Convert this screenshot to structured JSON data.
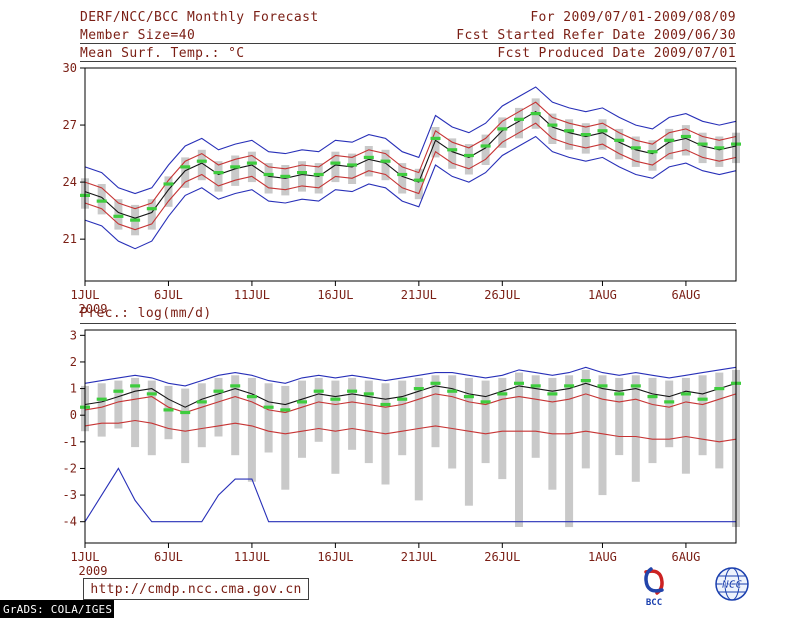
{
  "page": {
    "bg": "#ffffff",
    "text_color": "#7a1e14",
    "frame_color": "#000000"
  },
  "header": {
    "left": [
      "DERF/NCC/BCC Monthly Forecast",
      "Member Size=40",
      "Mean Surf. Temp.: °C"
    ],
    "right": [
      "For 2009/07/01-2009/08/09",
      "Fcst Started Refer Date 2009/06/30",
      "Fcst Produced Date 2009/07/01"
    ]
  },
  "footer": {
    "url": "http://cmdp.ncc.cma.gov.cn",
    "grads_credit": "GrADS: COLA/IGES",
    "logos": [
      {
        "name": "bcc-logo",
        "label": "BCC",
        "color": "#1a3fae",
        "accent": "#cc2222"
      },
      {
        "name": "ncc-logo",
        "label": "NCC",
        "color": "#1a3fae"
      }
    ]
  },
  "chart_data": [
    {
      "name": "surface-temperature-chart",
      "type": "line",
      "title": "Mean Surf. Temp.: °C",
      "xlabel": "",
      "ylabel": "",
      "ylim": [
        18.8,
        30
      ],
      "yticks": [
        21,
        24,
        27,
        30
      ],
      "n_days": 40,
      "x_ticks": [
        {
          "i": 0,
          "label": "1JUL",
          "sub": "2009"
        },
        {
          "i": 5,
          "label": "6JUL"
        },
        {
          "i": 10,
          "label": "11JUL"
        },
        {
          "i": 15,
          "label": "16JUL"
        },
        {
          "i": 20,
          "label": "21JUL"
        },
        {
          "i": 25,
          "label": "26JUL"
        },
        {
          "i": 31,
          "label": "1AUG"
        },
        {
          "i": 36,
          "label": "6AUG"
        }
      ],
      "series": [
        {
          "name": "ensemble-spread-bar",
          "role": "bar",
          "color": "#c9c9c9",
          "top": [
            24.2,
            23.9,
            23.1,
            22.8,
            23.1,
            24.3,
            25.3,
            25.7,
            25.1,
            25.4,
            25.6,
            25.0,
            24.9,
            25.1,
            25.0,
            25.6,
            25.5,
            25.9,
            25.7,
            25.0,
            24.7,
            26.9,
            26.3,
            26.0,
            26.5,
            27.4,
            27.9,
            28.4,
            27.6,
            27.3,
            27.1,
            27.3,
            26.8,
            26.4,
            26.2,
            26.8,
            27.0,
            26.6,
            26.4,
            26.6
          ],
          "bottom": [
            22.6,
            22.3,
            21.5,
            21.2,
            21.5,
            22.7,
            23.7,
            24.1,
            23.5,
            23.8,
            24.0,
            23.4,
            23.3,
            23.5,
            23.4,
            24.0,
            23.9,
            24.3,
            24.1,
            23.4,
            23.1,
            25.3,
            24.7,
            24.4,
            24.9,
            25.8,
            26.3,
            26.8,
            26.0,
            25.7,
            25.5,
            25.7,
            25.2,
            24.8,
            24.6,
            25.2,
            25.4,
            25.0,
            24.8,
            25.0
          ]
        },
        {
          "name": "ensemble-max",
          "role": "line",
          "color": "#2830b8",
          "values": [
            24.8,
            24.5,
            23.7,
            23.4,
            23.7,
            24.9,
            25.9,
            26.3,
            25.7,
            26.0,
            26.2,
            25.6,
            25.5,
            25.7,
            25.6,
            26.2,
            26.1,
            26.5,
            26.3,
            25.6,
            25.3,
            27.5,
            26.9,
            26.6,
            27.1,
            28.0,
            28.5,
            29.0,
            28.2,
            27.9,
            27.7,
            27.9,
            27.4,
            27.0,
            26.8,
            27.4,
            27.6,
            27.2,
            27.0,
            27.2
          ]
        },
        {
          "name": "upper-red",
          "role": "line",
          "color": "#c63434",
          "values": [
            24.0,
            23.7,
            22.9,
            22.6,
            22.9,
            24.1,
            25.1,
            25.5,
            24.9,
            25.2,
            25.4,
            24.8,
            24.7,
            24.9,
            24.8,
            25.4,
            25.3,
            25.7,
            25.5,
            24.8,
            24.5,
            26.7,
            26.1,
            25.8,
            26.3,
            27.2,
            27.7,
            28.2,
            27.4,
            27.1,
            26.9,
            27.1,
            26.6,
            26.2,
            26.0,
            26.6,
            26.8,
            26.4,
            26.2,
            26.4
          ]
        },
        {
          "name": "ensemble-mean",
          "role": "line",
          "color": "#141414",
          "values": [
            23.5,
            23.2,
            22.4,
            22.1,
            22.4,
            23.6,
            24.6,
            25.0,
            24.4,
            24.7,
            24.9,
            24.3,
            24.2,
            24.4,
            24.3,
            24.9,
            24.8,
            25.2,
            25.0,
            24.3,
            24.0,
            26.2,
            25.6,
            25.3,
            25.8,
            26.7,
            27.2,
            27.7,
            26.9,
            26.6,
            26.4,
            26.6,
            26.1,
            25.7,
            25.5,
            26.1,
            26.3,
            25.9,
            25.7,
            25.9
          ]
        },
        {
          "name": "lower-red",
          "role": "line",
          "color": "#c63434",
          "values": [
            22.9,
            22.6,
            21.8,
            21.5,
            21.8,
            23.0,
            24.0,
            24.4,
            23.8,
            24.1,
            24.3,
            23.7,
            23.6,
            23.8,
            23.7,
            24.3,
            24.2,
            24.6,
            24.4,
            23.7,
            23.4,
            25.6,
            25.0,
            24.7,
            25.2,
            26.1,
            26.6,
            27.1,
            26.3,
            26.0,
            25.8,
            26.0,
            25.5,
            25.1,
            24.9,
            25.5,
            25.7,
            25.3,
            25.1,
            25.3
          ]
        },
        {
          "name": "ensemble-min",
          "role": "line",
          "color": "#2830b8",
          "values": [
            22.0,
            21.7,
            20.9,
            20.5,
            20.9,
            22.2,
            23.3,
            23.7,
            23.1,
            23.4,
            23.6,
            23.0,
            22.9,
            23.1,
            23.0,
            23.6,
            23.5,
            23.9,
            23.7,
            23.0,
            22.7,
            24.9,
            24.3,
            24.0,
            24.5,
            25.4,
            25.9,
            26.4,
            25.6,
            25.3,
            25.1,
            25.3,
            24.8,
            24.4,
            24.2,
            24.8,
            25.0,
            24.6,
            24.4,
            24.6
          ]
        },
        {
          "name": "obs-green-dashes",
          "role": "dashes",
          "color": "#3ecc3e",
          "values": [
            23.3,
            23.0,
            22.2,
            22.0,
            22.6,
            23.9,
            24.8,
            25.1,
            24.5,
            24.8,
            25.0,
            24.4,
            24.3,
            24.5,
            24.4,
            25.0,
            24.9,
            25.3,
            25.1,
            24.4,
            24.1,
            26.3,
            25.7,
            25.4,
            25.9,
            26.8,
            27.3,
            27.6,
            27.0,
            26.7,
            26.5,
            26.7,
            26.2,
            25.8,
            25.6,
            26.2,
            26.4,
            26.0,
            25.8,
            26.0
          ]
        }
      ]
    },
    {
      "name": "precipitation-chart",
      "type": "line",
      "title": "Prec.: log(mm/d)",
      "xlabel": "",
      "ylabel": "",
      "ylim": [
        -4.8,
        3.2
      ],
      "yticks": [
        -4,
        -3,
        -2,
        -1,
        0,
        1,
        2,
        3
      ],
      "n_days": 40,
      "x_ticks": [
        {
          "i": 0,
          "label": "1JUL",
          "sub": "2009"
        },
        {
          "i": 5,
          "label": "6JUL"
        },
        {
          "i": 10,
          "label": "11JUL"
        },
        {
          "i": 15,
          "label": "16JUL"
        },
        {
          "i": 20,
          "label": "21JUL"
        },
        {
          "i": 25,
          "label": "26JUL"
        },
        {
          "i": 31,
          "label": "1AUG"
        },
        {
          "i": 36,
          "label": "6AUG"
        }
      ],
      "series": [
        {
          "name": "ensemble-spread-bar",
          "role": "bar",
          "color": "#c9c9c9",
          "top": [
            1.1,
            1.2,
            1.3,
            1.4,
            1.3,
            1.1,
            1.0,
            1.2,
            1.4,
            1.5,
            1.4,
            1.2,
            1.1,
            1.3,
            1.4,
            1.3,
            1.4,
            1.3,
            1.2,
            1.3,
            1.4,
            1.5,
            1.5,
            1.4,
            1.3,
            1.4,
            1.6,
            1.5,
            1.4,
            1.5,
            1.7,
            1.5,
            1.4,
            1.5,
            1.4,
            1.3,
            1.4,
            1.5,
            1.6,
            1.7
          ],
          "bottom": [
            -0.6,
            -0.8,
            -0.5,
            -1.2,
            -1.5,
            -0.9,
            -1.8,
            -1.2,
            -0.8,
            -1.5,
            -2.5,
            -1.4,
            -2.8,
            -1.6,
            -1.0,
            -2.2,
            -1.3,
            -1.8,
            -2.6,
            -1.5,
            -3.2,
            -1.2,
            -2.0,
            -3.4,
            -1.8,
            -2.4,
            -4.2,
            -1.6,
            -2.8,
            -4.2,
            -2.0,
            -3.0,
            -1.5,
            -2.5,
            -1.8,
            -1.2,
            -2.2,
            -1.5,
            -2.0,
            -4.2
          ]
        },
        {
          "name": "ensemble-max",
          "role": "line",
          "color": "#2830b8",
          "values": [
            1.2,
            1.3,
            1.4,
            1.5,
            1.4,
            1.2,
            1.1,
            1.3,
            1.5,
            1.6,
            1.5,
            1.3,
            1.2,
            1.4,
            1.5,
            1.4,
            1.5,
            1.4,
            1.3,
            1.4,
            1.5,
            1.6,
            1.6,
            1.5,
            1.4,
            1.5,
            1.7,
            1.6,
            1.5,
            1.6,
            1.8,
            1.6,
            1.5,
            1.6,
            1.5,
            1.4,
            1.5,
            1.6,
            1.7,
            1.8
          ]
        },
        {
          "name": "ensemble-mean",
          "role": "line",
          "color": "#141414",
          "values": [
            0.4,
            0.5,
            0.7,
            0.9,
            1.0,
            0.6,
            0.3,
            0.6,
            0.8,
            1.0,
            0.8,
            0.5,
            0.4,
            0.6,
            0.8,
            0.7,
            0.8,
            0.7,
            0.6,
            0.7,
            0.9,
            1.1,
            1.0,
            0.8,
            0.7,
            0.9,
            1.1,
            1.0,
            0.9,
            1.0,
            1.2,
            1.0,
            0.9,
            1.0,
            0.8,
            0.7,
            0.9,
            0.8,
            1.0,
            1.2
          ]
        },
        {
          "name": "upper-red",
          "role": "line",
          "color": "#c63434",
          "values": [
            0.2,
            0.3,
            0.5,
            0.6,
            0.7,
            0.3,
            0.1,
            0.3,
            0.5,
            0.7,
            0.5,
            0.2,
            0.1,
            0.3,
            0.5,
            0.4,
            0.5,
            0.4,
            0.3,
            0.4,
            0.6,
            0.8,
            0.7,
            0.5,
            0.4,
            0.6,
            0.7,
            0.6,
            0.5,
            0.6,
            0.8,
            0.6,
            0.5,
            0.6,
            0.4,
            0.3,
            0.5,
            0.4,
            0.6,
            0.8
          ]
        },
        {
          "name": "lower-red",
          "role": "line",
          "color": "#c63434",
          "values": [
            -0.4,
            -0.3,
            -0.3,
            -0.2,
            -0.3,
            -0.5,
            -0.6,
            -0.5,
            -0.4,
            -0.3,
            -0.4,
            -0.6,
            -0.7,
            -0.6,
            -0.5,
            -0.6,
            -0.5,
            -0.6,
            -0.7,
            -0.6,
            -0.5,
            -0.4,
            -0.5,
            -0.6,
            -0.7,
            -0.6,
            -0.6,
            -0.6,
            -0.7,
            -0.7,
            -0.6,
            -0.7,
            -0.8,
            -0.8,
            -0.9,
            -0.9,
            -0.8,
            -0.9,
            -1.0,
            -0.9
          ]
        },
        {
          "name": "ensemble-min",
          "role": "line",
          "color": "#2830b8",
          "values": [
            -4.0,
            -3.0,
            -2.0,
            -3.2,
            -4.0,
            -4.0,
            -4.0,
            -4.0,
            -3.0,
            -2.4,
            -2.4,
            -4.0,
            -4.0,
            -4.0,
            -4.0,
            -4.0,
            -4.0,
            -4.0,
            -4.0,
            -4.0,
            -4.0,
            -4.0,
            -4.0,
            -4.0,
            -4.0,
            -4.0,
            -4.0,
            -4.0,
            -4.0,
            -4.0,
            -4.0,
            -4.0,
            -4.0,
            -4.0,
            -4.0,
            -4.0,
            -4.0,
            -4.0,
            -4.0,
            -4.0
          ]
        },
        {
          "name": "obs-green-dashes",
          "role": "dashes",
          "color": "#3ecc3e",
          "values": [
            0.3,
            0.6,
            0.9,
            1.1,
            0.8,
            0.2,
            0.1,
            0.5,
            0.9,
            1.1,
            0.7,
            0.3,
            0.2,
            0.5,
            0.9,
            0.6,
            0.9,
            0.8,
            0.4,
            0.6,
            1.0,
            1.2,
            0.9,
            0.7,
            0.5,
            0.8,
            1.2,
            1.1,
            0.8,
            1.1,
            1.3,
            1.1,
            0.8,
            1.1,
            0.7,
            0.5,
            0.8,
            0.6,
            1.0,
            1.2
          ]
        }
      ]
    }
  ]
}
